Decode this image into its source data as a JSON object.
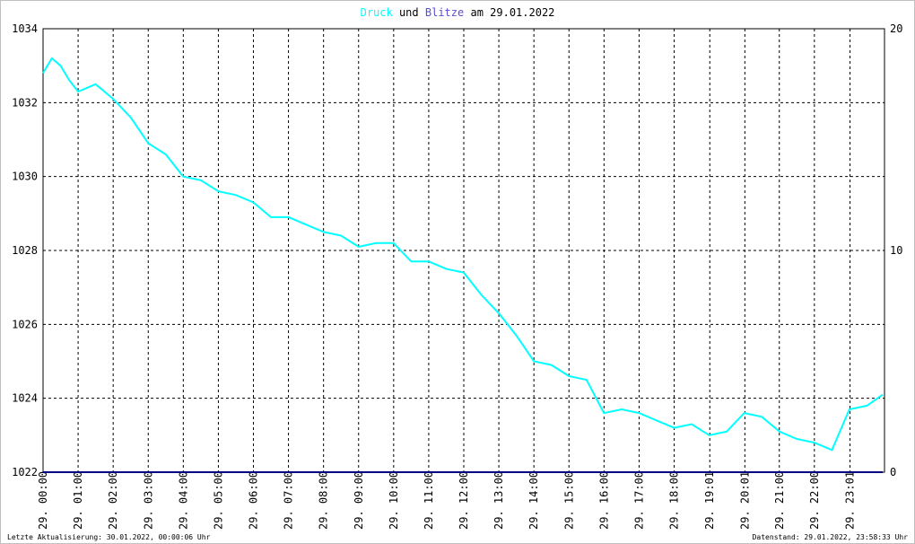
{
  "chart_data": {
    "type": "line",
    "title_connector": "und",
    "title_date": "am 29.01.2022",
    "footer_left": "Letzte Aktualisierung: 30.01.2022, 00:00:06 Uhr",
    "footer_right": "Datenstand: 29.01.2022, 23:58:33 Uhr",
    "xlim": [
      0,
      24
    ],
    "xticks": [
      {
        "value": 0,
        "label": "29. 00:00"
      },
      {
        "value": 1,
        "label": "29. 01:00"
      },
      {
        "value": 2,
        "label": "29. 02:00"
      },
      {
        "value": 3,
        "label": "29. 03:00"
      },
      {
        "value": 4,
        "label": "29. 04:00"
      },
      {
        "value": 5,
        "label": "29. 05:00"
      },
      {
        "value": 6,
        "label": "29. 06:00"
      },
      {
        "value": 7,
        "label": "29. 07:00"
      },
      {
        "value": 8,
        "label": "29. 08:00"
      },
      {
        "value": 9,
        "label": "29. 09:00"
      },
      {
        "value": 10,
        "label": "29. 10:00"
      },
      {
        "value": 11,
        "label": "29. 11:00"
      },
      {
        "value": 12,
        "label": "29. 12:00"
      },
      {
        "value": 13,
        "label": "29. 13:00"
      },
      {
        "value": 14,
        "label": "29. 14:00"
      },
      {
        "value": 15,
        "label": "29. 15:00"
      },
      {
        "value": 16,
        "label": "29. 16:00"
      },
      {
        "value": 17,
        "label": "29. 17:00"
      },
      {
        "value": 18,
        "label": "29. 18:00"
      },
      {
        "value": 19.017,
        "label": "29. 19:01"
      },
      {
        "value": 20.017,
        "label": "29. 20:01"
      },
      {
        "value": 21,
        "label": "29. 21:00"
      },
      {
        "value": 22,
        "label": "29. 22:00"
      },
      {
        "value": 23.017,
        "label": "29. 23:01"
      }
    ],
    "ylim": [
      1022,
      1034
    ],
    "yticks": [
      1022,
      1024,
      1026,
      1028,
      1030,
      1032,
      1034
    ],
    "y2lim": [
      0,
      20
    ],
    "y2ticks": [
      0,
      10,
      20
    ],
    "grid": true,
    "series": [
      {
        "name": "Druck",
        "color": "#00ffff",
        "x": [
          0,
          0.25,
          0.5,
          0.75,
          1,
          1.5,
          2,
          2.5,
          3,
          3.5,
          4,
          4.5,
          5,
          5.5,
          6,
          6.5,
          7,
          7.5,
          8,
          8.5,
          9,
          9.5,
          10,
          10.5,
          11,
          11.5,
          12,
          12.5,
          13,
          13.5,
          14,
          14.5,
          15,
          15.5,
          16,
          16.5,
          17,
          17.5,
          18,
          18.5,
          19,
          19.5,
          20,
          20.5,
          21,
          21.5,
          22,
          22.5,
          23,
          23.5,
          23.95
        ],
        "values": [
          1032.8,
          1033.2,
          1033.0,
          1032.6,
          1032.3,
          1032.5,
          1032.1,
          1031.6,
          1030.9,
          1030.6,
          1030.0,
          1029.9,
          1029.6,
          1029.5,
          1029.3,
          1028.9,
          1028.9,
          1028.7,
          1028.5,
          1028.4,
          1028.1,
          1028.2,
          1028.2,
          1027.7,
          1027.7,
          1027.5,
          1027.4,
          1026.8,
          1026.3,
          1025.7,
          1025.0,
          1024.9,
          1024.6,
          1024.5,
          1023.6,
          1023.7,
          1023.6,
          1023.4,
          1023.2,
          1023.3,
          1023.0,
          1023.1,
          1023.6,
          1023.5,
          1023.1,
          1022.9,
          1022.8,
          1022.6,
          1023.7,
          1023.8,
          1024.1
        ]
      },
      {
        "name": "Blitze",
        "color": "#5a4fcf",
        "line_color": "#000080",
        "axis": "y2",
        "x": [
          0,
          23.95
        ],
        "values": [
          0,
          0
        ]
      }
    ]
  }
}
